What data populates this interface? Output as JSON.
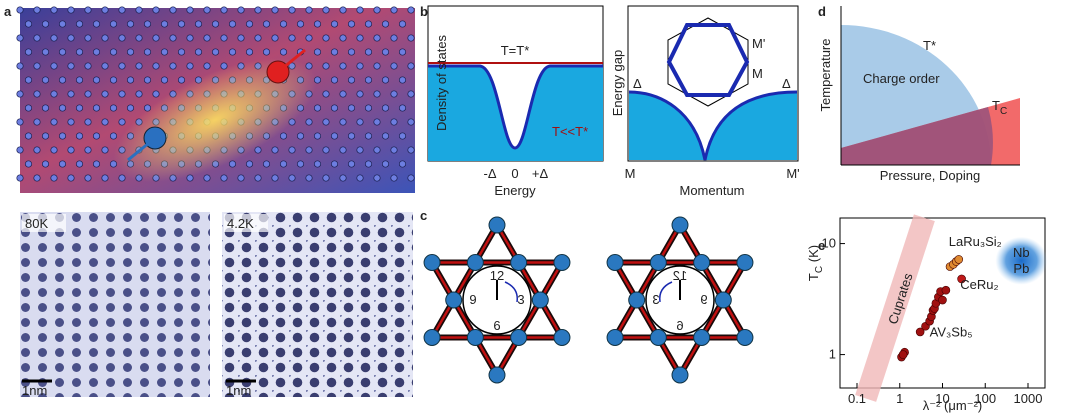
{
  "figure": {
    "panel_a": {
      "label": "a",
      "stm": [
        {
          "temperature": "80K",
          "scale_bar": "1nm"
        },
        {
          "temperature": "4.2K",
          "scale_bar": "1nm"
        }
      ]
    },
    "panel_b": {
      "label": "b",
      "dos": {
        "y_label": "Density of states",
        "x_label": "Energy",
        "x_ticks": [
          "-Δ",
          "0",
          "+Δ"
        ],
        "line_labels": [
          "T=T*",
          "T<<T*"
        ]
      },
      "gap": {
        "y_label": "Energy gap",
        "x_label": "Momentum",
        "x_ticks": [
          "M",
          "M'"
        ],
        "gap_labels": [
          "Δ",
          "Δ"
        ],
        "inset_labels": [
          "M'",
          "M"
        ]
      }
    },
    "panel_c": {
      "label": "c",
      "clocks": [
        [
          "12",
          "3",
          "6",
          "9"
        ],
        [
          "12",
          "3",
          "6",
          "9"
        ]
      ]
    },
    "panel_d": {
      "label": "d",
      "y_label": "Temperature",
      "x_label": "Pressure, Doping",
      "t_star": "T*",
      "region": "Charge order",
      "tc_main": "T",
      "tc_sub": "C"
    }
  },
  "chart_data": {
    "type": "scatter",
    "label": "e",
    "x_label": "λ⁻² (μm⁻²)",
    "y_label_main": "T",
    "y_label_sub": "C",
    "y_label_unit": " (K)",
    "log_x": true,
    "log_y": true,
    "xlim": [
      0.04,
      2500
    ],
    "ylim": [
      0.5,
      17
    ],
    "xticks": [
      0.1,
      1,
      10,
      100,
      1000
    ],
    "yticks": [
      1,
      10
    ],
    "annotations": [
      "Cuprates",
      "Nb",
      "Pb"
    ],
    "series": [
      {
        "name": "AV₃Sb₅",
        "color": "#a01010",
        "x": [
          1.1,
          1.3,
          1.2,
          3,
          4,
          5,
          5.5,
          6,
          6.5,
          7,
          8,
          9,
          10,
          12
        ],
        "values": [
          0.95,
          1.05,
          1.0,
          1.6,
          1.8,
          2.0,
          2.2,
          2.5,
          2.6,
          2.9,
          3.3,
          3.7,
          3.1,
          3.8
        ]
      },
      {
        "name": "LaRu₃Si₂",
        "color": "#e08a30",
        "x": [
          15,
          18,
          21,
          24
        ],
        "values": [
          6.2,
          6.5,
          6.9,
          7.2
        ]
      },
      {
        "name": "CeRu₂",
        "color": "#c01818",
        "x": [
          28
        ],
        "values": [
          4.8
        ]
      }
    ]
  }
}
